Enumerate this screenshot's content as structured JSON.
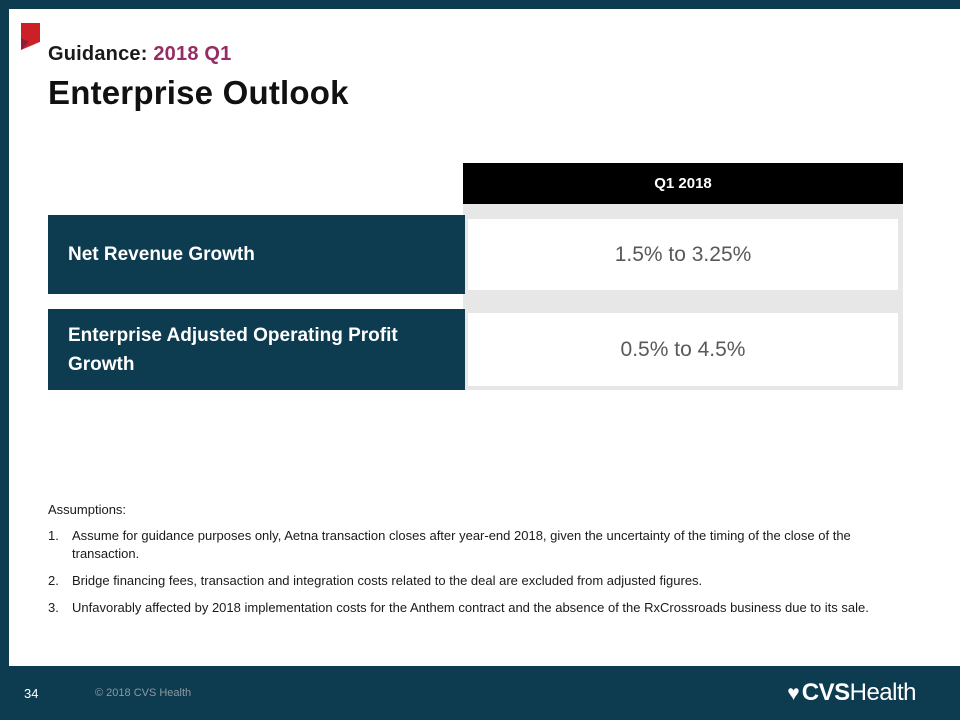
{
  "slide": {
    "kicker": {
      "label": "Guidance:",
      "value": "2018 Q1"
    },
    "title": "Enterprise Outlook",
    "table": {
      "column_header": "Q1 2018",
      "rows": [
        {
          "label": "Net Revenue Growth",
          "value": "1.5% to 3.25%"
        },
        {
          "label": "Enterprise Adjusted Operating Profit Growth",
          "value": "0.5% to 4.5%"
        }
      ]
    },
    "assumptions": {
      "heading": "Assumptions:",
      "items": [
        {
          "num": "1.",
          "text": "Assume for guidance purposes only, Aetna transaction closes after year-end 2018, given the uncertainty of the timing of the close of the transaction."
        },
        {
          "num": "2.",
          "text": "Bridge financing fees, transaction and integration costs related to the deal are excluded from adjusted figures."
        },
        {
          "num": "3.",
          "text": "Unfavorably affected by 2018 implementation costs for the Anthem contract and the absence of the RxCrossroads business due to its sale."
        }
      ]
    },
    "footer": {
      "page_number": "34",
      "copyright": "© 2018 CVS Health",
      "logo": {
        "heart": "♥",
        "cvs": "CVS",
        "health": "Health"
      }
    },
    "colors": {
      "brand_teal": "#0d3c50",
      "brand_purple": "#962c64",
      "brand_red": "#cc2026",
      "header_black": "#000000",
      "gray_band": "#e7e7e7",
      "value_text": "#595959"
    }
  }
}
